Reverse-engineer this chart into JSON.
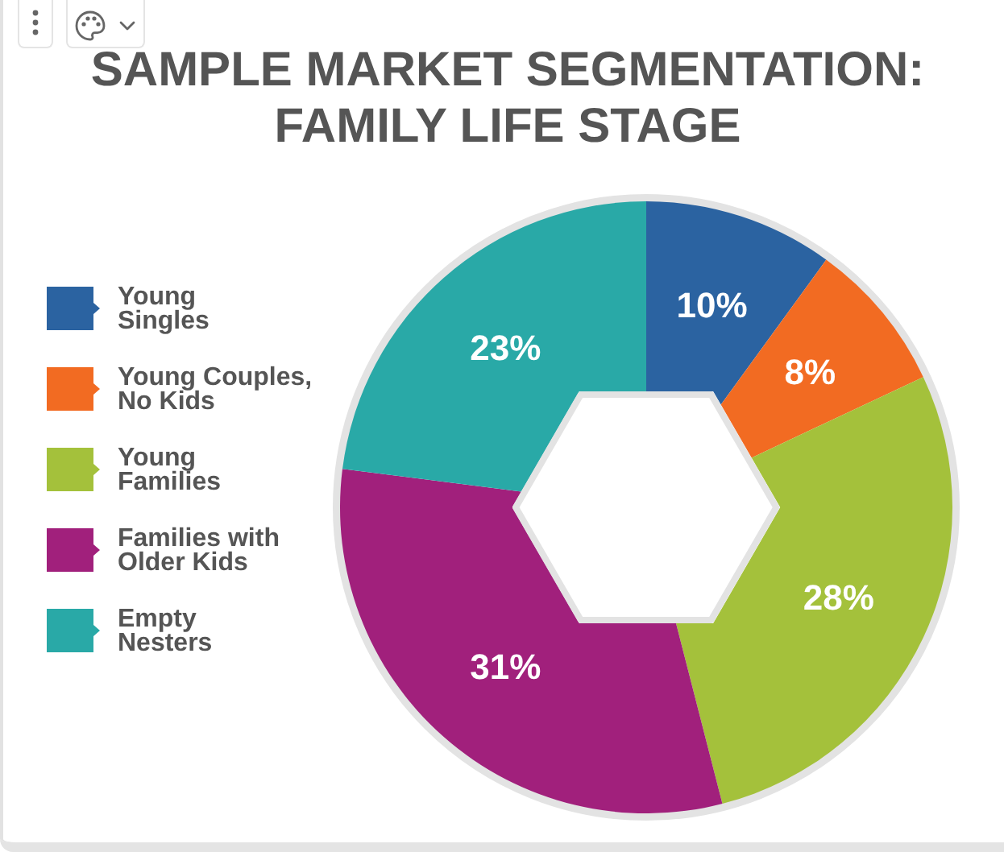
{
  "chart_data": {
    "type": "donut",
    "title": "SAMPLE MARKET SEGMENTATION: FAMILY LIFE STAGE",
    "categories": [
      "Young\nSingles",
      "Young Couples,\nNo Kids",
      "Young\nFamilies",
      "Families with\nOlder Kids",
      "Empty\nNesters"
    ],
    "values": [
      10,
      8,
      28,
      31,
      23
    ],
    "colors": [
      "#2b63a1",
      "#f26b22",
      "#a4c13b",
      "#a1207c",
      "#29a9a7"
    ],
    "value_labels": [
      "10%",
      "8%",
      "28%",
      "31%",
      "23%"
    ],
    "legend": "left"
  }
}
